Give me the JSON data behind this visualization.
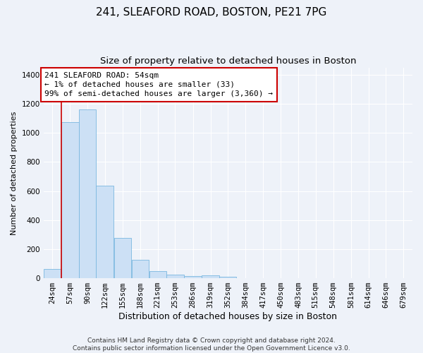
{
  "title_line1": "241, SLEAFORD ROAD, BOSTON, PE21 7PG",
  "title_line2": "Size of property relative to detached houses in Boston",
  "xlabel": "Distribution of detached houses by size in Boston",
  "ylabel": "Number of detached properties",
  "bar_color": "#cce0f5",
  "bar_edge_color": "#7ab8e0",
  "background_color": "#eef2f9",
  "grid_color": "#ffffff",
  "annotation_box_color": "#cc0000",
  "annotation_text": "241 SLEAFORD ROAD: 54sqm\n← 1% of detached houses are smaller (33)\n99% of semi-detached houses are larger (3,360) →",
  "property_line_x": 57,
  "categories": [
    "24sqm",
    "57sqm",
    "90sqm",
    "122sqm",
    "155sqm",
    "188sqm",
    "221sqm",
    "253sqm",
    "286sqm",
    "319sqm",
    "352sqm",
    "384sqm",
    "417sqm",
    "450sqm",
    "483sqm",
    "515sqm",
    "548sqm",
    "581sqm",
    "614sqm",
    "646sqm",
    "679sqm"
  ],
  "bar_centers": [
    40.5,
    73.5,
    106,
    138.5,
    171.5,
    204.5,
    237,
    269.5,
    302.5,
    335.5,
    368,
    400.5,
    433.5,
    466.5,
    499,
    531.5,
    564.5,
    597.5,
    630,
    662.5,
    695.5
  ],
  "bar_widths": [
    33,
    33,
    32,
    33,
    33,
    33,
    32,
    33,
    33,
    33,
    32,
    33,
    33,
    33,
    32,
    33,
    33,
    33,
    32,
    33,
    33
  ],
  "bar_heights": [
    65,
    1075,
    1160,
    635,
    275,
    128,
    50,
    25,
    15,
    20,
    12,
    0,
    0,
    0,
    0,
    0,
    0,
    0,
    0,
    0,
    0
  ],
  "ylim": [
    0,
    1450
  ],
  "yticks": [
    0,
    200,
    400,
    600,
    800,
    1000,
    1200,
    1400
  ],
  "footer_text": "Contains HM Land Registry data © Crown copyright and database right 2024.\nContains public sector information licensed under the Open Government Licence v3.0.",
  "title_fontsize": 11,
  "subtitle_fontsize": 9.5,
  "ylabel_fontsize": 8,
  "xlabel_fontsize": 9,
  "tick_fontsize": 7.5,
  "annotation_fontsize": 8,
  "footer_fontsize": 6.5
}
